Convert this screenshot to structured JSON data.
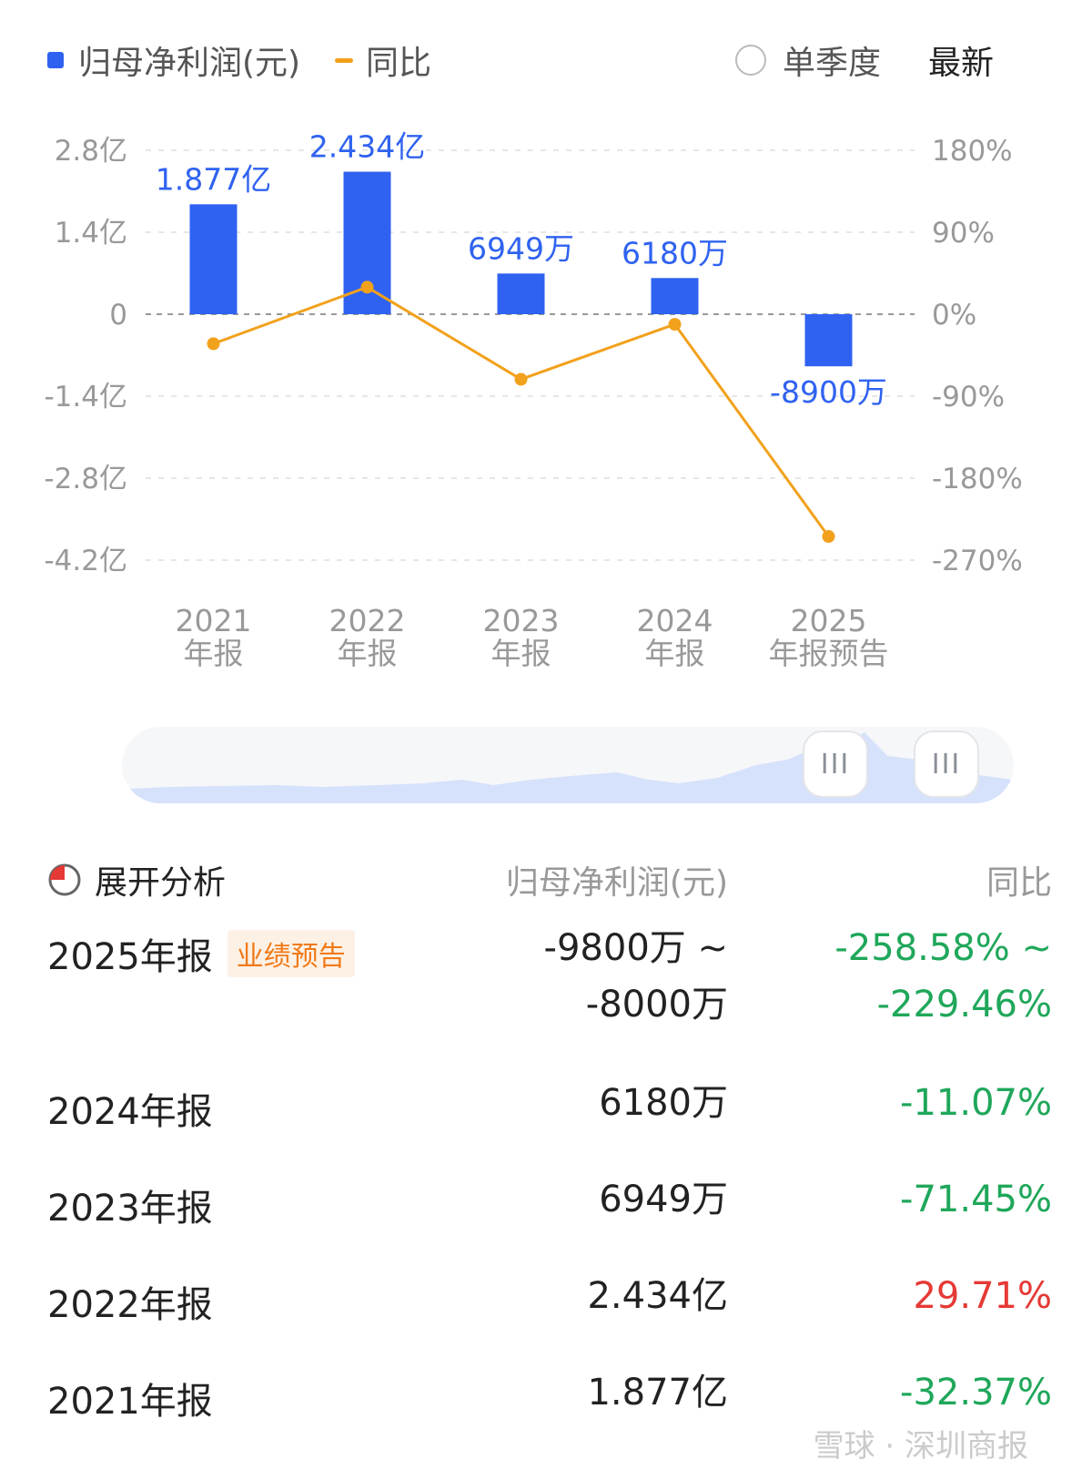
{
  "legend": {
    "bar_label": "归母净利润(元)",
    "line_label": "同比",
    "single_quarter_label": "单季度",
    "latest_label": "最新"
  },
  "colors": {
    "bar": "#2f62f0",
    "line": "#f2a11c",
    "negative_yoy": "#1fa75a",
    "positive_yoy": "#e53935",
    "badge": "#f07a18"
  },
  "chart_data": {
    "type": "bar",
    "categories": [
      "2021\n年报",
      "2022\n年报",
      "2023\n年报",
      "2024\n年报",
      "2025\n年报预告"
    ],
    "series": [
      {
        "name": "归母净利润(元)",
        "type": "bar",
        "axis": "left",
        "values": [
          1.877,
          2.434,
          0.6949,
          0.618,
          -0.89
        ],
        "labels": [
          "1.877亿",
          "2.434亿",
          "6949万",
          "6180万",
          "-8900万"
        ]
      },
      {
        "name": "同比",
        "type": "line",
        "axis": "right",
        "values": [
          -32.37,
          29.71,
          -71.45,
          -11.07,
          -244.02
        ]
      }
    ],
    "left_axis": {
      "ticks": [
        "2.8亿",
        "1.4亿",
        "0",
        "-1.4亿",
        "-2.8亿",
        "-4.2亿"
      ],
      "values": [
        2.8,
        1.4,
        0,
        -1.4,
        -2.8,
        -4.2
      ],
      "ylim": [
        -4.2,
        2.8
      ]
    },
    "right_axis": {
      "ticks": [
        "180%",
        "90%",
        "0%",
        "-90%",
        "-180%",
        "-270%"
      ],
      "values": [
        180,
        90,
        0,
        -90,
        -180,
        -270
      ],
      "ylim": [
        -270,
        180
      ]
    },
    "grid": true,
    "legend_position": "top-left"
  },
  "slider": {
    "handle_left_icon": "grip-icon",
    "handle_right_icon": "grip-icon",
    "handle_glyph": "III"
  },
  "table": {
    "expand_label": "展开分析",
    "value_header": "归母净利润(元)",
    "yoy_header": "同比",
    "rows": [
      {
        "period": "2025年报",
        "badge": "业绩预告",
        "value_lines": [
          "-9800万 ~",
          "-8000万"
        ],
        "yoy_lines": [
          "-258.58% ~",
          "-229.46%"
        ],
        "trend": "down"
      },
      {
        "period": "2024年报",
        "value_lines": [
          "6180万"
        ],
        "yoy_lines": [
          "-11.07%"
        ],
        "trend": "down"
      },
      {
        "period": "2023年报",
        "value_lines": [
          "6949万"
        ],
        "yoy_lines": [
          "-71.45%"
        ],
        "trend": "down"
      },
      {
        "period": "2022年报",
        "value_lines": [
          "2.434亿"
        ],
        "yoy_lines": [
          "29.71%"
        ],
        "trend": "up"
      },
      {
        "period": "2021年报",
        "value_lines": [
          "1.877亿"
        ],
        "yoy_lines": [
          "-32.37%"
        ],
        "trend": "down"
      }
    ]
  },
  "watermark": "雪球 · 深圳商报"
}
